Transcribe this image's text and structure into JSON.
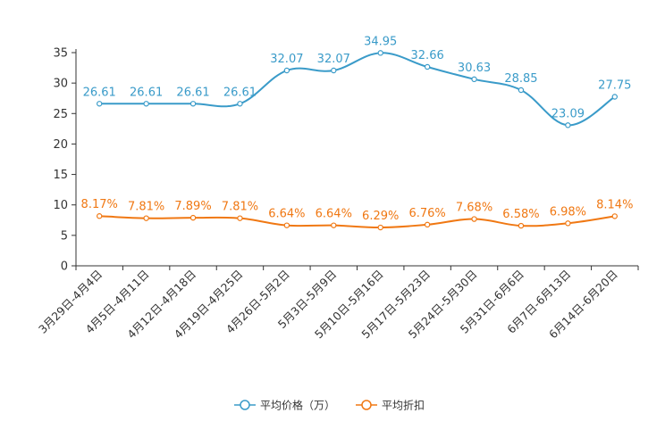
{
  "chart_data": {
    "type": "line",
    "categories": [
      "3月29日-4月4日",
      "4月5日-4月11日",
      "4月12日-4月18日",
      "4月19日-4月25日",
      "4月26日-5月2日",
      "5月3日-5月9日",
      "5月10日-5月16日",
      "5月17日-5月23日",
      "5月24日-5月30日",
      "5月31日-6月6日",
      "6月7日-6月13日",
      "6月14日-6月20日"
    ],
    "series": [
      {
        "name": "平均价格（万）",
        "color": "#3a9bc9",
        "values": [
          26.61,
          26.61,
          26.61,
          26.61,
          32.07,
          32.07,
          34.95,
          32.66,
          30.63,
          28.85,
          23.09,
          27.75
        ],
        "labels": [
          "26.61",
          "26.61",
          "26.61",
          "26.61",
          "32.07",
          "32.07",
          "34.95",
          "32.66",
          "30.63",
          "28.85",
          "23.09",
          "27.75"
        ]
      },
      {
        "name": "平均折扣",
        "color": "#f07813",
        "values": [
          8.17,
          7.81,
          7.89,
          7.81,
          6.64,
          6.64,
          6.29,
          6.76,
          7.68,
          6.58,
          6.98,
          8.14
        ],
        "labels": [
          "8.17%",
          "7.81%",
          "7.89%",
          "7.81%",
          "6.64%",
          "6.64%",
          "6.29%",
          "6.76%",
          "7.68%",
          "6.58%",
          "6.98%",
          "8.14%"
        ]
      }
    ],
    "yticks": [
      0,
      5,
      10,
      15,
      20,
      25,
      30,
      35
    ],
    "ylim": [
      0,
      35
    ],
    "title": "",
    "xlabel": "",
    "ylabel": "",
    "grid": false,
    "legend_position": "bottom-center"
  }
}
